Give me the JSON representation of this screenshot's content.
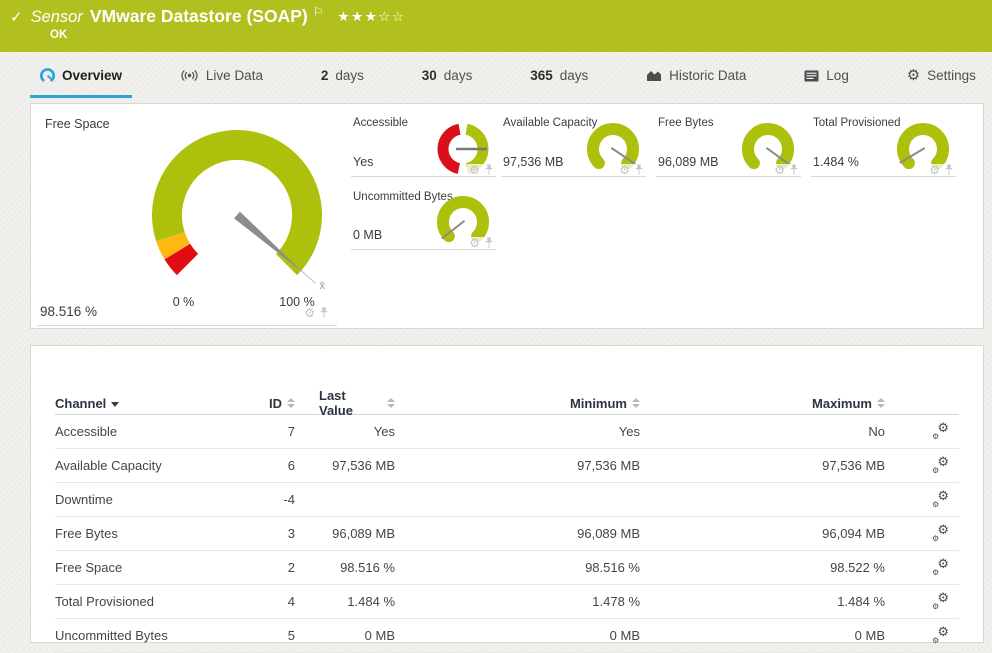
{
  "colors": {
    "header_green": "#b2c01f",
    "gauge_green": "#adc00c",
    "gauge_red": "#e30b13",
    "gauge_yellow": "#fdb813",
    "binary_red": "#da0f1c",
    "needle_gray": "#8d8d8d",
    "accent_blue": "#2aa3da"
  },
  "header": {
    "kind": "Sensor",
    "title": "VMware Datastore (SOAP)",
    "status": "OK",
    "rating": {
      "filled": 3,
      "total": 5
    }
  },
  "tabs": [
    {
      "label": "Overview",
      "icon": "gauge-icon",
      "active": true
    },
    {
      "label": "Live Data",
      "icon": "live-data-icon"
    },
    {
      "num": "2",
      "label": "days"
    },
    {
      "num": "30",
      "label": "days"
    },
    {
      "num": "365",
      "label": "days"
    },
    {
      "label": "Historic Data",
      "icon": "historic-data-icon"
    },
    {
      "label": "Log",
      "icon": "log-icon"
    },
    {
      "label": "Settings",
      "icon": "settings-icon"
    }
  ],
  "gauges": {
    "free_space": {
      "title": "Free Space",
      "value": "98.516 %",
      "percent": 98.516,
      "min_label": "0 %",
      "max_label": "100 %",
      "avg_marker": "x̄",
      "segments": [
        {
          "color": "#e30b13",
          "to": 5
        },
        {
          "color": "#fdb813",
          "to": 10
        },
        {
          "color": "#adc00c",
          "to": 100
        }
      ]
    },
    "mini": [
      {
        "title": "Accessible",
        "value": "Yes",
        "kind": "binary",
        "needle_deg": 90
      },
      {
        "title": "Available Capacity",
        "value": "97,536 MB",
        "kind": "scale",
        "needle_deg": 124
      },
      {
        "title": "Free Bytes",
        "value": "96,089 MB",
        "kind": "scale",
        "needle_deg": 126
      },
      {
        "title": "Total Provisioned",
        "value": "1.484 %",
        "kind": "scale",
        "needle_deg": -121
      },
      {
        "title": "Uncommitted Bytes",
        "value": "0 MB",
        "kind": "scale",
        "needle_deg": -128
      }
    ]
  },
  "table": {
    "columns": [
      {
        "label": "Channel",
        "sort": "desc"
      },
      {
        "label": "ID",
        "sort": "none"
      },
      {
        "label": "Last Value",
        "sort": "none"
      },
      {
        "label": "Minimum",
        "sort": "none"
      },
      {
        "label": "Maximum",
        "sort": "none"
      },
      {
        "label": "",
        "sort": "none"
      }
    ],
    "rows": [
      {
        "channel": "Accessible",
        "id": "7",
        "last": "Yes",
        "min": "Yes",
        "max": "No"
      },
      {
        "channel": "Available Capacity",
        "id": "6",
        "last": "97,536 MB",
        "min": "97,536 MB",
        "max": "97,536 MB"
      },
      {
        "channel": "Downtime",
        "id": "-4",
        "last": "",
        "min": "",
        "max": ""
      },
      {
        "channel": "Free Bytes",
        "id": "3",
        "last": "96,089 MB",
        "min": "96,089 MB",
        "max": "96,094 MB"
      },
      {
        "channel": "Free Space",
        "id": "2",
        "last": "98.516 %",
        "min": "98.516 %",
        "max": "98.522 %"
      },
      {
        "channel": "Total Provisioned",
        "id": "4",
        "last": "1.484 %",
        "min": "1.478 %",
        "max": "1.484 %"
      },
      {
        "channel": "Uncommitted Bytes",
        "id": "5",
        "last": "0 MB",
        "min": "0 MB",
        "max": "0 MB"
      }
    ]
  }
}
